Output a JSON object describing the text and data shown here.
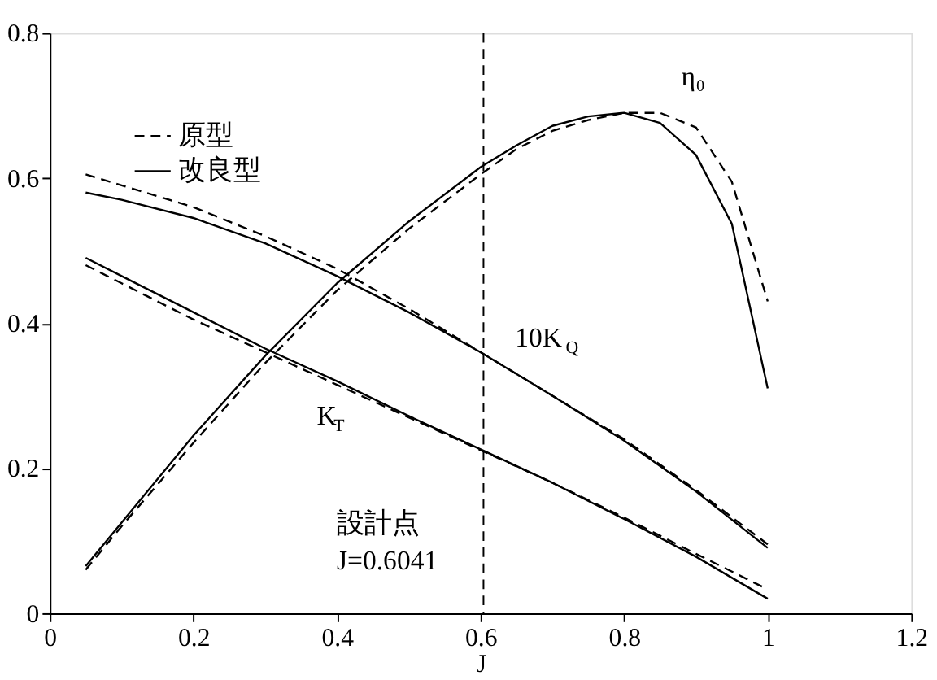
{
  "chart_data": {
    "type": "line",
    "xlabel": "J",
    "xlim": [
      0,
      1.2
    ],
    "xticks": [
      0,
      0.2,
      0.4,
      0.6,
      0.8,
      1,
      1.2
    ],
    "ylim": [
      0,
      0.8
    ],
    "yticks": [
      0,
      0.2,
      0.4,
      0.6,
      0.8
    ],
    "grid": false,
    "legend": "top left",
    "marker": "none",
    "series": [
      {
        "name": "原型",
        "color": "#000000",
        "line_style": "dashed",
        "x": [
          0.05,
          0.1,
          0.2,
          0.3,
          0.4,
          0.5,
          0.6,
          0.7,
          0.8,
          0.9,
          1.0
        ],
        "values": [
          0.48,
          0.455,
          0.405,
          0.36,
          0.315,
          0.27,
          0.225,
          0.18,
          0.132,
          0.082,
          0.033
        ]
      },
      {
        "name": "改良型",
        "color": "#000000",
        "line_style": "solid",
        "x": [
          0.05,
          0.1,
          0.2,
          0.3,
          0.4,
          0.5,
          0.6,
          0.7,
          0.8,
          0.9,
          1.0
        ],
        "values": [
          0.49,
          0.465,
          0.415,
          0.365,
          0.32,
          0.272,
          0.226,
          0.18,
          0.13,
          0.078,
          0.02
        ]
      },
      {
        "color": "#000000",
        "line_style": "dashed",
        "x": [
          0.05,
          0.1,
          0.2,
          0.3,
          0.4,
          0.5,
          0.6,
          0.7,
          0.8,
          0.9,
          1.0
        ],
        "values": [
          0.605,
          0.59,
          0.56,
          0.52,
          0.475,
          0.42,
          0.36,
          0.3,
          0.24,
          0.17,
          0.095
        ]
      },
      {
        "color": "#000000",
        "line_style": "solid",
        "x": [
          0.05,
          0.1,
          0.2,
          0.3,
          0.4,
          0.5,
          0.6,
          0.7,
          0.8,
          0.9,
          1.0
        ],
        "values": [
          0.58,
          0.57,
          0.545,
          0.51,
          0.465,
          0.415,
          0.36,
          0.3,
          0.238,
          0.168,
          0.09
        ]
      },
      {
        "color": "#000000",
        "line_style": "dashed",
        "x": [
          0.05,
          0.1,
          0.2,
          0.3,
          0.4,
          0.5,
          0.6,
          0.65,
          0.7,
          0.75,
          0.8,
          0.85,
          0.9,
          0.95,
          1.0
        ],
        "values": [
          0.06,
          0.12,
          0.235,
          0.345,
          0.445,
          0.53,
          0.605,
          0.64,
          0.665,
          0.68,
          0.69,
          0.69,
          0.67,
          0.595,
          0.43
        ]
      },
      {
        "color": "#000000",
        "line_style": "solid",
        "x": [
          0.05,
          0.1,
          0.2,
          0.3,
          0.4,
          0.5,
          0.6,
          0.65,
          0.7,
          0.75,
          0.8,
          0.85,
          0.9,
          0.95,
          1.0
        ],
        "values": [
          0.065,
          0.125,
          0.245,
          0.355,
          0.455,
          0.54,
          0.615,
          0.645,
          0.672,
          0.685,
          0.69,
          0.676,
          0.632,
          0.537,
          0.31
        ]
      }
    ],
    "ref_lines": [
      {
        "axis": "x",
        "value": 0.6041,
        "color": "#000000",
        "line_style": "dashed"
      }
    ],
    "annotations": [
      "η₀",
      "10K$_{Q}$",
      "K$_{T}$",
      "設計点",
      "J=0.6041"
    ]
  }
}
